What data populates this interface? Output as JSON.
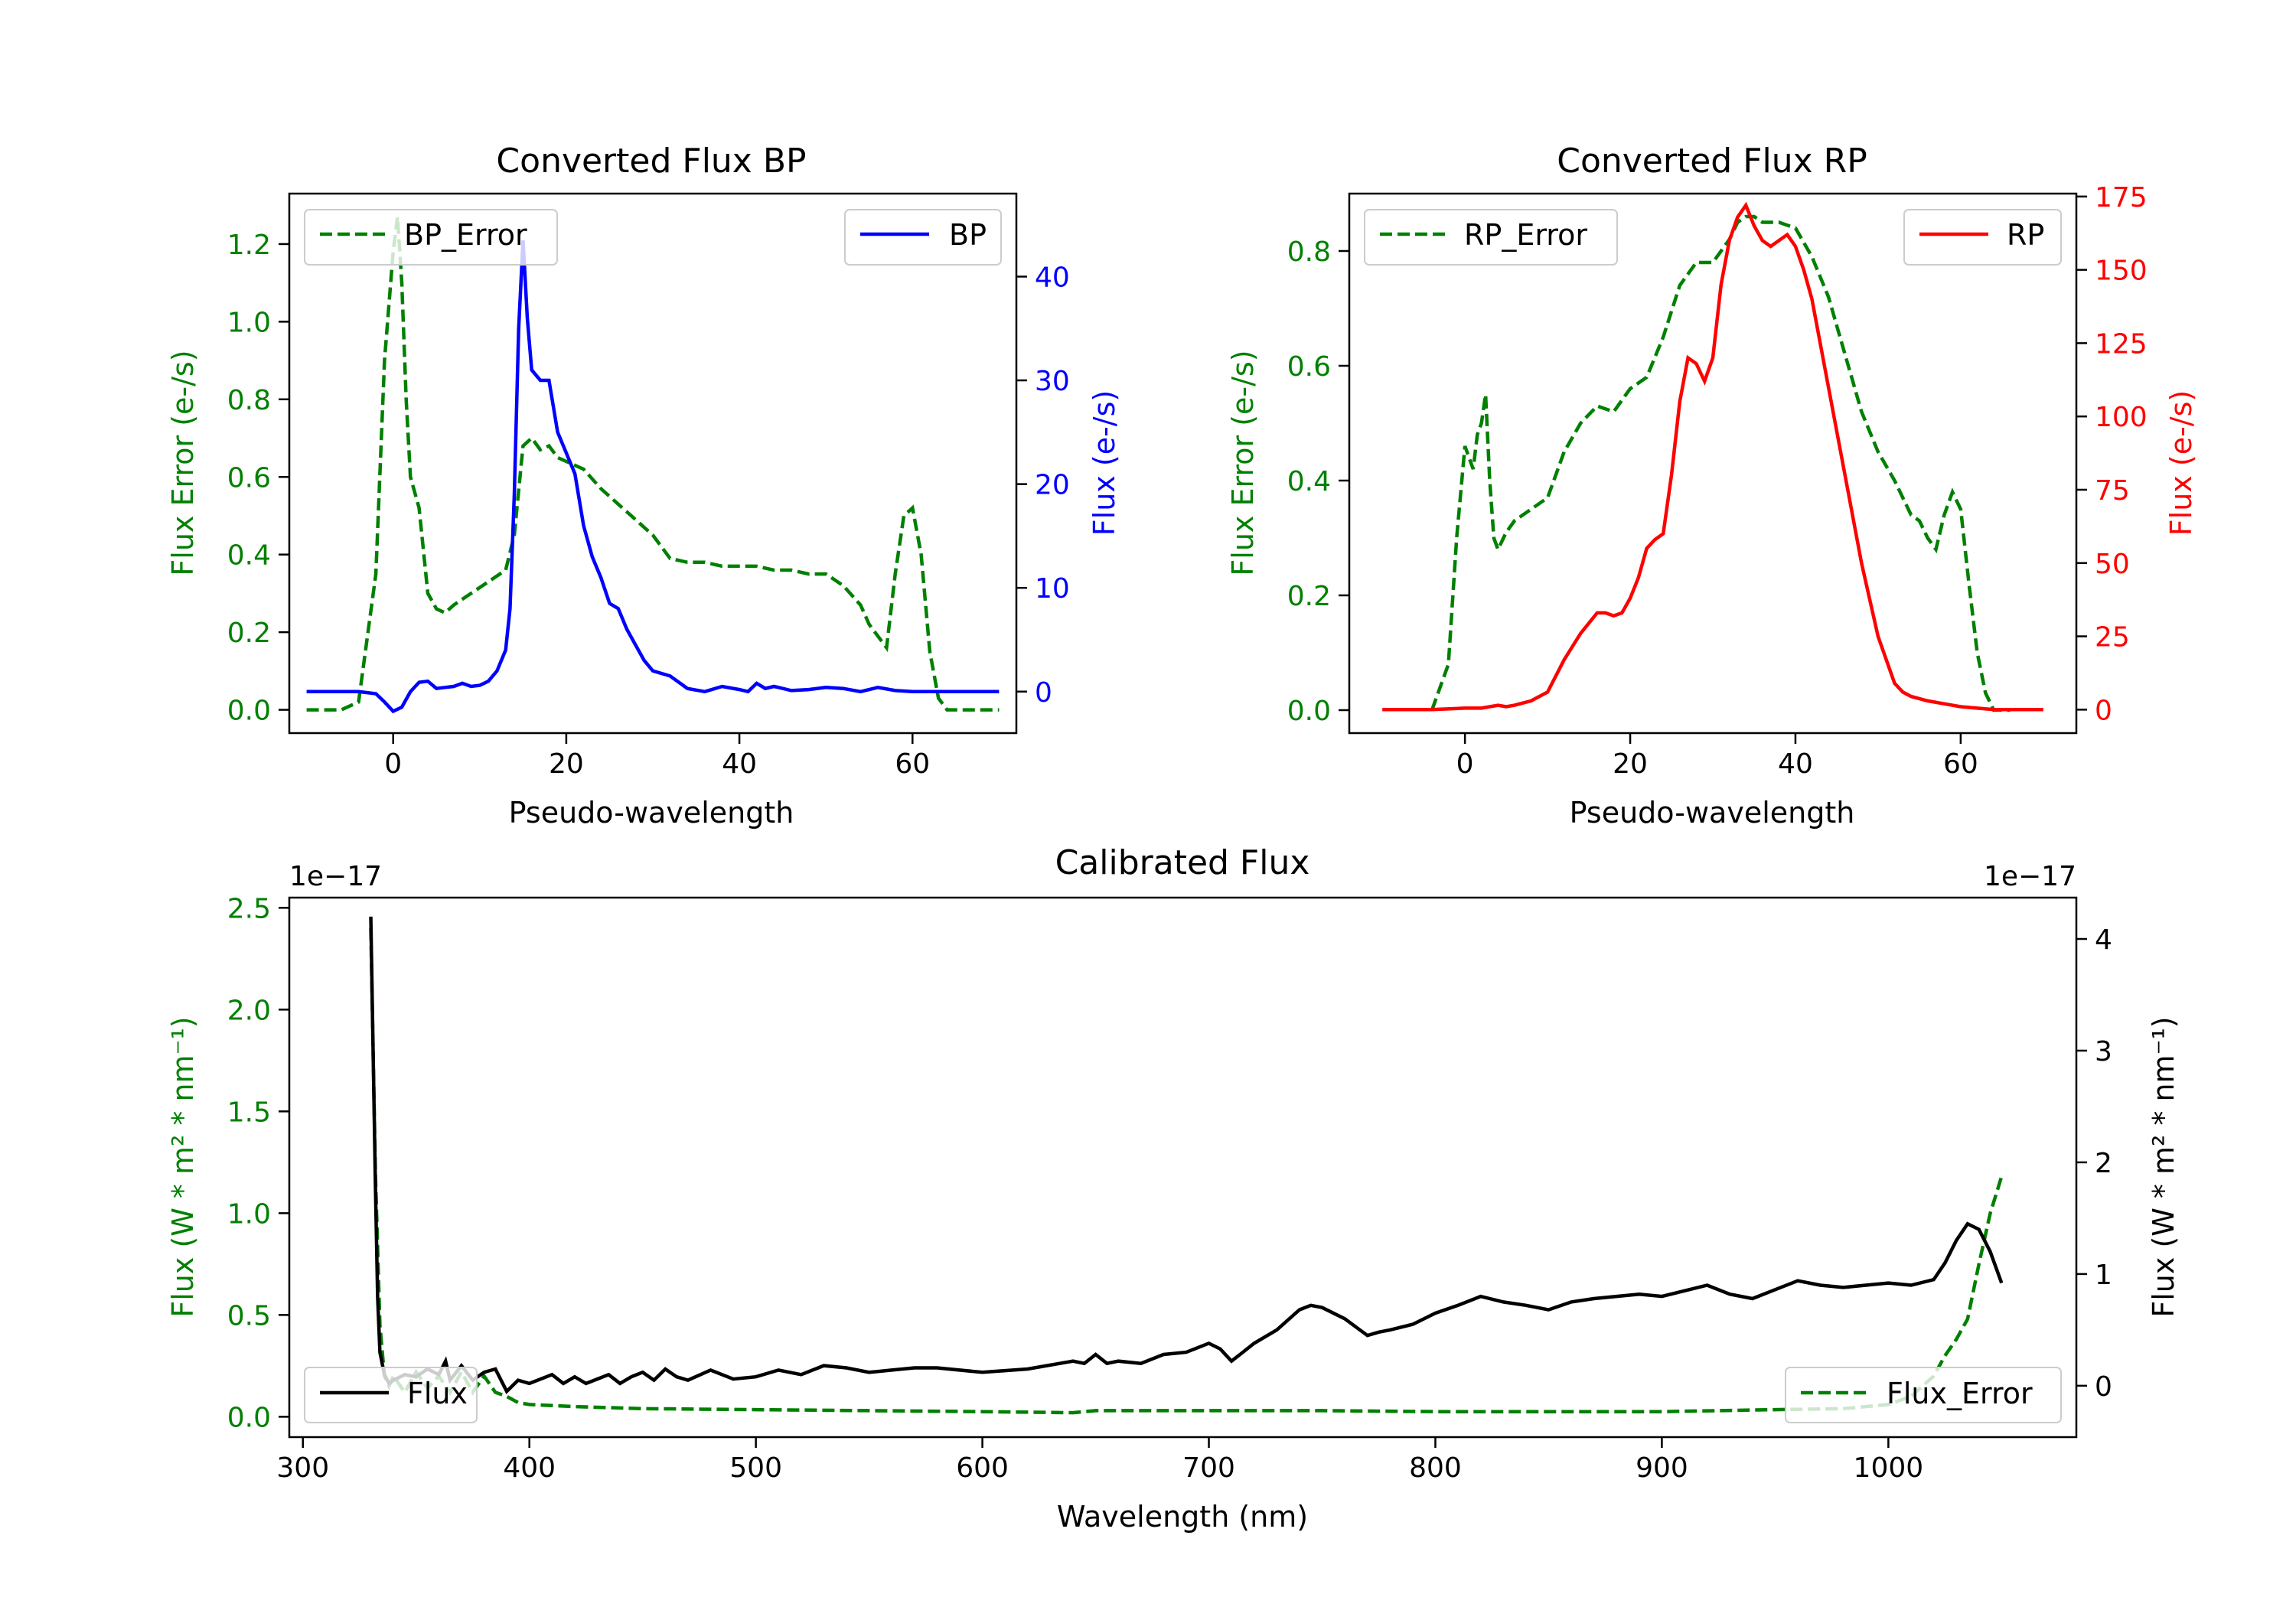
{
  "colors": {
    "error_green": "#008000",
    "bp_blue": "#0000ff",
    "rp_red": "#ff0000",
    "flux_black": "#000000"
  },
  "chart_data": [
    {
      "type": "line",
      "title": "Converted Flux BP",
      "xlabel": "Pseudo-wavelength",
      "ylabel_left": "Flux Error (e-/s)",
      "ylabel_right": "Flux (e-/s)",
      "xlim": [
        -12,
        72
      ],
      "ylim_left": [
        -0.06,
        1.33
      ],
      "ylim_right": [
        -4,
        48
      ],
      "xticks": [
        "0",
        "20",
        "40",
        "60"
      ],
      "yticks_left": [
        "0.0",
        "0.2",
        "0.4",
        "0.6",
        "0.8",
        "1.0",
        "1.2"
      ],
      "yticks_right": [
        "0",
        "10",
        "20",
        "30",
        "40"
      ],
      "series": [
        {
          "name": "BP_Error",
          "axis": "left",
          "style": "dashed",
          "legend": "top-left",
          "x": [
            -10,
            -6,
            -4,
            -2,
            -1,
            0,
            0.5,
            1,
            1.5,
            2,
            3,
            4,
            5,
            6,
            7,
            9,
            11,
            13,
            14,
            15,
            16,
            17,
            18,
            19,
            20,
            22,
            24,
            26,
            28,
            30,
            32,
            34,
            36,
            38,
            40,
            42,
            44,
            46,
            48,
            50,
            52,
            54,
            55,
            56,
            57,
            58,
            59,
            60,
            61,
            62,
            63,
            64,
            66,
            68,
            70
          ],
          "values": [
            0.0,
            0.0,
            0.02,
            0.35,
            0.9,
            1.18,
            1.27,
            1.1,
            0.8,
            0.6,
            0.52,
            0.3,
            0.26,
            0.25,
            0.27,
            0.3,
            0.33,
            0.36,
            0.45,
            0.68,
            0.7,
            0.67,
            0.68,
            0.65,
            0.64,
            0.62,
            0.57,
            0.53,
            0.49,
            0.45,
            0.39,
            0.38,
            0.38,
            0.37,
            0.37,
            0.37,
            0.36,
            0.36,
            0.35,
            0.35,
            0.32,
            0.27,
            0.22,
            0.19,
            0.16,
            0.35,
            0.5,
            0.52,
            0.4,
            0.15,
            0.03,
            0.0,
            0.0,
            0.0,
            0.0
          ]
        },
        {
          "name": "BP",
          "axis": "right",
          "style": "solid",
          "legend": "top-right",
          "x": [
            -10,
            -6,
            -4,
            -2,
            -1,
            0,
            1,
            2,
            3,
            4,
            5,
            6,
            7,
            8,
            9,
            10,
            11,
            12,
            13,
            13.5,
            14,
            14.5,
            15,
            15.5,
            16,
            17,
            18,
            19,
            20,
            21,
            22,
            23,
            24,
            25,
            26,
            27,
            28,
            29,
            30,
            32,
            34,
            36,
            38,
            40,
            41,
            42,
            43,
            44,
            46,
            48,
            50,
            52,
            54,
            56,
            58,
            60,
            62,
            64,
            66,
            68,
            70
          ],
          "values": [
            0,
            0,
            0,
            -0.2,
            -1,
            -1.9,
            -1.5,
            0,
            0.9,
            1.0,
            0.3,
            0.4,
            0.5,
            0.8,
            0.5,
            0.6,
            1.0,
            2,
            4,
            8,
            19,
            35,
            43.5,
            36,
            31,
            30,
            30,
            25,
            23,
            21,
            16,
            13,
            11,
            8.5,
            8,
            6,
            4.5,
            3,
            2,
            1.5,
            0.3,
            0,
            0.5,
            0.2,
            0,
            0.8,
            0.3,
            0.5,
            0.1,
            0.2,
            0.4,
            0.3,
            0,
            0.4,
            0.1,
            0,
            0,
            0,
            0,
            0,
            0
          ]
        }
      ]
    },
    {
      "type": "line",
      "title": "Converted Flux RP",
      "xlabel": "Pseudo-wavelength",
      "ylabel_left": "Flux Error (e-/s)",
      "ylabel_right": "Flux (e-/s)",
      "xlim": [
        -14,
        74
      ],
      "ylim_left": [
        -0.04,
        0.9
      ],
      "ylim_right": [
        -8,
        176
      ],
      "xticks": [
        "0",
        "20",
        "40",
        "60"
      ],
      "yticks_left": [
        "0.0",
        "0.2",
        "0.4",
        "0.6",
        "0.8"
      ],
      "yticks_right": [
        "0",
        "25",
        "50",
        "75",
        "100",
        "125",
        "150",
        "175"
      ],
      "series": [
        {
          "name": "RP_Error",
          "axis": "left",
          "style": "dashed",
          "legend": "top-left",
          "x": [
            -4,
            -2,
            -1,
            0,
            1,
            1.5,
            2,
            2.5,
            3,
            3.5,
            4,
            5,
            6,
            8,
            10,
            12,
            14,
            16,
            18,
            20,
            22,
            24,
            26,
            28,
            30,
            32,
            33,
            34,
            35,
            36,
            38,
            40,
            42,
            44,
            46,
            48,
            50,
            52,
            54,
            55,
            56,
            57,
            58,
            59,
            60,
            61,
            62,
            63,
            64,
            65,
            66
          ],
          "values": [
            0.0,
            0.08,
            0.3,
            0.46,
            0.42,
            0.48,
            0.5,
            0.55,
            0.4,
            0.3,
            0.28,
            0.31,
            0.33,
            0.35,
            0.37,
            0.45,
            0.5,
            0.53,
            0.52,
            0.56,
            0.58,
            0.65,
            0.74,
            0.78,
            0.78,
            0.82,
            0.85,
            0.86,
            0.86,
            0.85,
            0.85,
            0.84,
            0.79,
            0.72,
            0.62,
            0.52,
            0.45,
            0.4,
            0.34,
            0.33,
            0.3,
            0.28,
            0.34,
            0.38,
            0.35,
            0.22,
            0.1,
            0.03,
            0.0,
            0.0,
            0.0
          ]
        },
        {
          "name": "RP",
          "axis": "right",
          "style": "solid",
          "legend": "top-right",
          "x": [
            -10,
            -4,
            0,
            2,
            3,
            4,
            5,
            6,
            8,
            10,
            12,
            14,
            16,
            17,
            18,
            19,
            20,
            21,
            22,
            23,
            24,
            25,
            26,
            27,
            28,
            29,
            30,
            31,
            32,
            33,
            34,
            35,
            36,
            37,
            38,
            39,
            40,
            41,
            42,
            44,
            46,
            48,
            50,
            52,
            53,
            54,
            56,
            58,
            60,
            62,
            64,
            66,
            68,
            70
          ],
          "values": [
            0,
            0,
            0.5,
            0.5,
            1,
            1.5,
            1,
            1.5,
            3,
            6,
            17,
            26,
            33,
            33,
            32,
            33,
            38,
            45,
            55,
            58,
            60,
            80,
            105,
            120,
            118,
            112,
            120,
            145,
            160,
            168,
            172,
            165,
            160,
            158,
            160,
            162,
            158,
            150,
            140,
            110,
            80,
            50,
            25,
            9,
            6,
            4.5,
            3,
            2,
            1,
            0.5,
            0,
            0,
            0,
            0
          ]
        }
      ]
    },
    {
      "type": "line",
      "title": "Calibrated Flux",
      "xlabel": "Wavelength (nm)",
      "ylabel_left": "Flux (W * m² * nm⁻¹)",
      "ylabel_right": "Flux (W * m² * nm⁻¹)",
      "left_offset_label": "1e−17",
      "right_offset_label": "1e−17",
      "xlim": [
        294,
        1083
      ],
      "ylim_left": [
        -0.1,
        2.55
      ],
      "ylim_right": [
        -0.46,
        4.37
      ],
      "xticks": [
        "300",
        "400",
        "500",
        "600",
        "700",
        "800",
        "900",
        "1000"
      ],
      "yticks_left": [
        "0.0",
        "0.5",
        "1.0",
        "1.5",
        "2.0",
        "2.5"
      ],
      "yticks_right": [
        "0",
        "1",
        "2",
        "3",
        "4"
      ],
      "series": [
        {
          "name": "Flux_Error",
          "axis": "left",
          "style": "dashed",
          "legend": "bottom-right",
          "x": [
            330,
            332,
            334,
            336,
            338,
            340,
            345,
            350,
            355,
            360,
            365,
            370,
            375,
            380,
            385,
            390,
            395,
            400,
            420,
            450,
            500,
            550,
            600,
            640,
            650,
            700,
            750,
            800,
            850,
            900,
            950,
            980,
            1000,
            1010,
            1020,
            1025,
            1030,
            1035,
            1040,
            1045,
            1050
          ],
          "values": [
            2.4,
            1.2,
            0.45,
            0.2,
            0.15,
            0.2,
            0.12,
            0.22,
            0.14,
            0.2,
            0.12,
            0.22,
            0.12,
            0.2,
            0.12,
            0.1,
            0.07,
            0.06,
            0.05,
            0.04,
            0.035,
            0.03,
            0.025,
            0.02,
            0.03,
            0.03,
            0.03,
            0.025,
            0.025,
            0.025,
            0.035,
            0.04,
            0.06,
            0.1,
            0.2,
            0.3,
            0.38,
            0.48,
            0.75,
            1.0,
            1.18
          ]
        },
        {
          "name": "Flux",
          "axis": "right",
          "style": "solid",
          "legend": "bottom-left",
          "x": [
            330,
            331,
            332,
            333,
            334,
            336,
            338,
            340,
            345,
            350,
            355,
            360,
            363,
            365,
            370,
            375,
            380,
            385,
            390,
            395,
            400,
            410,
            415,
            420,
            425,
            430,
            435,
            440,
            445,
            450,
            455,
            460,
            465,
            470,
            480,
            490,
            500,
            510,
            520,
            530,
            540,
            550,
            560,
            570,
            580,
            600,
            620,
            640,
            645,
            650,
            655,
            660,
            670,
            680,
            690,
            700,
            705,
            710,
            715,
            720,
            730,
            740,
            745,
            750,
            760,
            770,
            775,
            780,
            790,
            800,
            810,
            820,
            830,
            840,
            850,
            860,
            870,
            880,
            890,
            900,
            910,
            920,
            930,
            940,
            950,
            960,
            970,
            980,
            990,
            1000,
            1010,
            1020,
            1025,
            1030,
            1035,
            1040,
            1045,
            1050
          ],
          "values": [
            4.2,
            3.0,
            1.8,
            0.8,
            0.3,
            0.1,
            0.02,
            0.05,
            0.1,
            0.08,
            0.15,
            0.1,
            0.22,
            0.05,
            0.18,
            0.05,
            0.12,
            0.15,
            -0.05,
            0.05,
            0.02,
            0.1,
            0.02,
            0.08,
            0.02,
            0.06,
            0.1,
            0.02,
            0.08,
            0.12,
            0.05,
            0.15,
            0.08,
            0.05,
            0.14,
            0.06,
            0.08,
            0.14,
            0.1,
            0.18,
            0.16,
            0.12,
            0.14,
            0.16,
            0.16,
            0.12,
            0.15,
            0.22,
            0.2,
            0.28,
            0.2,
            0.22,
            0.2,
            0.28,
            0.3,
            0.38,
            0.33,
            0.22,
            0.3,
            0.38,
            0.5,
            0.68,
            0.72,
            0.7,
            0.6,
            0.45,
            0.48,
            0.5,
            0.55,
            0.65,
            0.72,
            0.8,
            0.75,
            0.72,
            0.68,
            0.75,
            0.78,
            0.8,
            0.82,
            0.8,
            0.85,
            0.9,
            0.82,
            0.78,
            0.86,
            0.94,
            0.9,
            0.88,
            0.9,
            0.92,
            0.9,
            0.95,
            1.1,
            1.3,
            1.45,
            1.4,
            1.2,
            0.92
          ]
        }
      ]
    }
  ]
}
